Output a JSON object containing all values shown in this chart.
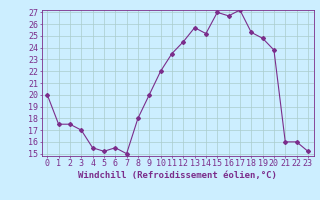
{
  "x": [
    0,
    1,
    2,
    3,
    4,
    5,
    6,
    7,
    8,
    9,
    10,
    11,
    12,
    13,
    14,
    15,
    16,
    17,
    18,
    19,
    20,
    21,
    22,
    23
  ],
  "y": [
    20,
    17.5,
    17.5,
    17,
    15.5,
    15.2,
    15.5,
    15,
    18,
    20,
    22,
    23.5,
    24.5,
    25.7,
    25.2,
    27,
    26.7,
    27.2,
    25.3,
    24.8,
    23.8,
    16,
    16,
    15.2
  ],
  "line_color": "#7b2d8b",
  "marker": "D",
  "marker_size": 2,
  "bg_color": "#cceeff",
  "grid_color": "#aacccc",
  "xlabel": "Windchill (Refroidissement éolien,°C)",
  "xlabel_fontsize": 6.5,
  "tick_fontsize": 6,
  "ylim": [
    15,
    27
  ],
  "yticks": [
    15,
    16,
    17,
    18,
    19,
    20,
    21,
    22,
    23,
    24,
    25,
    26,
    27
  ],
  "xticks": [
    0,
    1,
    2,
    3,
    4,
    5,
    6,
    7,
    8,
    9,
    10,
    11,
    12,
    13,
    14,
    15,
    16,
    17,
    18,
    19,
    20,
    21,
    22,
    23
  ]
}
